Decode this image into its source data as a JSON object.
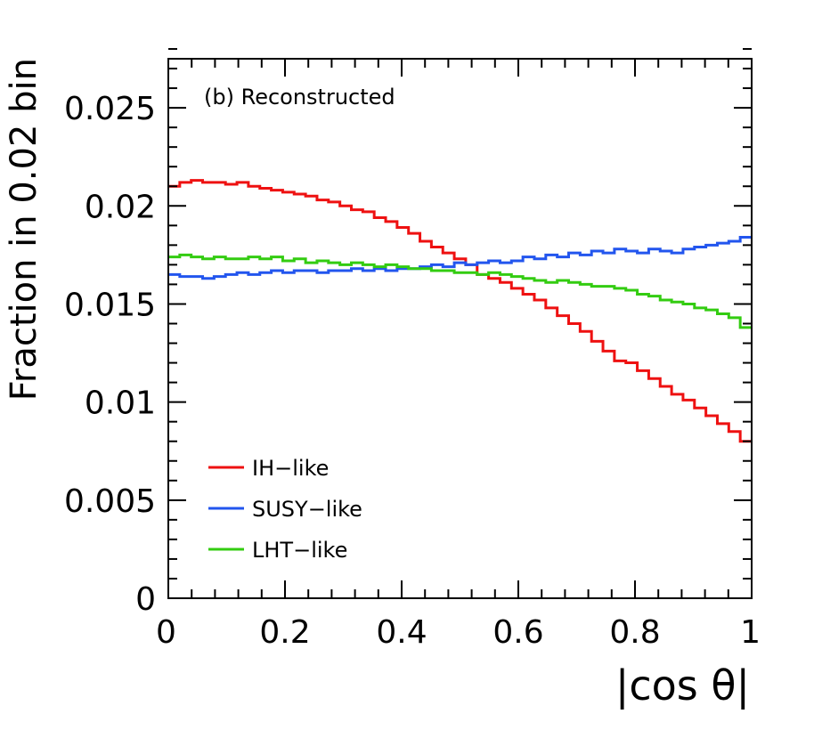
{
  "chart_data": {
    "type": "line",
    "subtype": "step-histogram",
    "annotation": "(b) Reconstructed",
    "xlabel": "|cos θ|",
    "ylabel": "Fraction in 0.02 bin",
    "xlim": [
      0,
      1
    ],
    "ylim": [
      0,
      0.0275
    ],
    "bin_width": 0.02,
    "grid": false,
    "legend_position": "bottom-left",
    "x_ticks": [
      "0",
      "0.2",
      "0.4",
      "0.6",
      "0.8",
      "1"
    ],
    "y_ticks": [
      "0",
      "0.005",
      "0.01",
      "0.015",
      "0.02",
      "0.025"
    ],
    "x_tick_values": [
      0,
      0.2,
      0.4,
      0.6,
      0.8,
      1.0
    ],
    "y_tick_values": [
      0,
      0.005,
      0.01,
      0.015,
      0.02,
      0.025
    ],
    "series": [
      {
        "name": "IH−like",
        "color": "#ee1111",
        "values": [
          0.021,
          0.0212,
          0.0213,
          0.0212,
          0.0212,
          0.0211,
          0.0212,
          0.021,
          0.0209,
          0.0208,
          0.0207,
          0.0206,
          0.0205,
          0.0203,
          0.0202,
          0.02,
          0.0198,
          0.0197,
          0.0194,
          0.0192,
          0.0189,
          0.0186,
          0.0182,
          0.0179,
          0.0176,
          0.0173,
          0.017,
          0.0165,
          0.0163,
          0.0161,
          0.0158,
          0.0155,
          0.0152,
          0.0148,
          0.0144,
          0.014,
          0.0136,
          0.0131,
          0.0126,
          0.0121,
          0.012,
          0.0116,
          0.0112,
          0.0108,
          0.0104,
          0.0101,
          0.0097,
          0.0093,
          0.0089,
          0.0085,
          0.008
        ]
      },
      {
        "name": "SUSY−like",
        "color": "#2255ee",
        "values": [
          0.0165,
          0.0164,
          0.0164,
          0.0163,
          0.0164,
          0.0165,
          0.0166,
          0.0165,
          0.0166,
          0.0167,
          0.0166,
          0.0167,
          0.0167,
          0.0166,
          0.0167,
          0.0167,
          0.0168,
          0.0167,
          0.0168,
          0.0167,
          0.0168,
          0.0168,
          0.0169,
          0.017,
          0.0169,
          0.0171,
          0.017,
          0.0171,
          0.0172,
          0.0171,
          0.0172,
          0.0174,
          0.0173,
          0.0175,
          0.0174,
          0.0176,
          0.0175,
          0.0177,
          0.0176,
          0.0178,
          0.0177,
          0.0176,
          0.0178,
          0.0177,
          0.0176,
          0.0178,
          0.0179,
          0.018,
          0.0181,
          0.0182,
          0.0184
        ]
      },
      {
        "name": "LHT−like",
        "color": "#33cc11",
        "values": [
          0.0174,
          0.0175,
          0.0174,
          0.0173,
          0.0174,
          0.0173,
          0.0173,
          0.0174,
          0.0173,
          0.0174,
          0.0172,
          0.0173,
          0.0171,
          0.0172,
          0.0171,
          0.017,
          0.0171,
          0.017,
          0.0169,
          0.017,
          0.0169,
          0.0168,
          0.0168,
          0.0167,
          0.0167,
          0.0166,
          0.0166,
          0.0165,
          0.0166,
          0.0165,
          0.0164,
          0.0163,
          0.0162,
          0.0161,
          0.0162,
          0.0161,
          0.016,
          0.0159,
          0.0159,
          0.0158,
          0.0157,
          0.0155,
          0.0154,
          0.0152,
          0.0151,
          0.015,
          0.0148,
          0.0147,
          0.0145,
          0.0143,
          0.0138
        ]
      }
    ]
  }
}
